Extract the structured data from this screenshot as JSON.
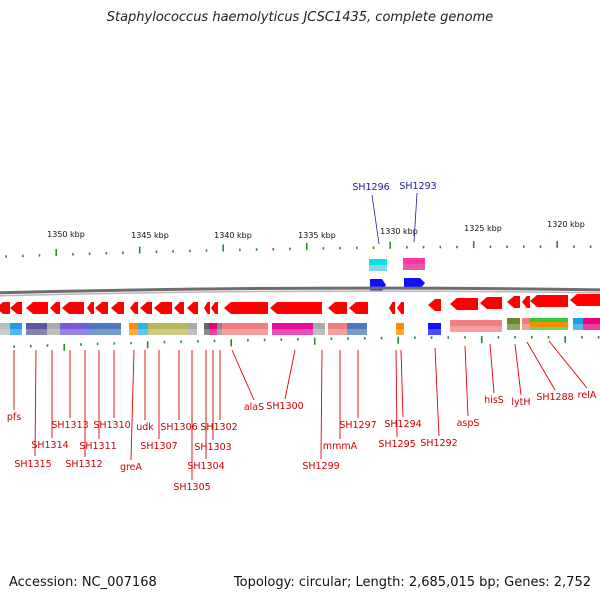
{
  "title": "Staphylococcus haemolyticus JCSC1435, complete genome",
  "footer": {
    "accession": "Accession: NC_007168",
    "summary": "Topology: circular; Length: 2,685,015 bp; Genes: 2,752"
  },
  "scale_labels": [
    "1350 kbp",
    "1345 kbp",
    "1340 kbp",
    "1335 kbp",
    "1330 kbp",
    "1325 kbp",
    "1320 kbp"
  ],
  "blue_labels": [
    "SH1296",
    "SH1293"
  ],
  "gene_labels": [
    "pfs",
    "SH1314",
    "SH1315",
    "SH1313",
    "SH1312",
    "SH1311",
    "SH1310",
    "greA",
    "udk",
    "SH1307",
    "SH1306",
    "SH1305",
    "SH1304",
    "SH1303",
    "SH1302",
    "alaS",
    "SH1300",
    "SH1299",
    "mmmA",
    "SH1297",
    "SH1295",
    "SH1294",
    "SH1292",
    "aspS",
    "hisS",
    "lytH",
    "SH1288",
    "relA"
  ],
  "colors": {
    "gene_arrow": "#ff0000",
    "label_red": "#cc0000",
    "label_blue": "#1a1aa0",
    "backbone": "#888888",
    "tick": "#2a8a2a"
  }
}
